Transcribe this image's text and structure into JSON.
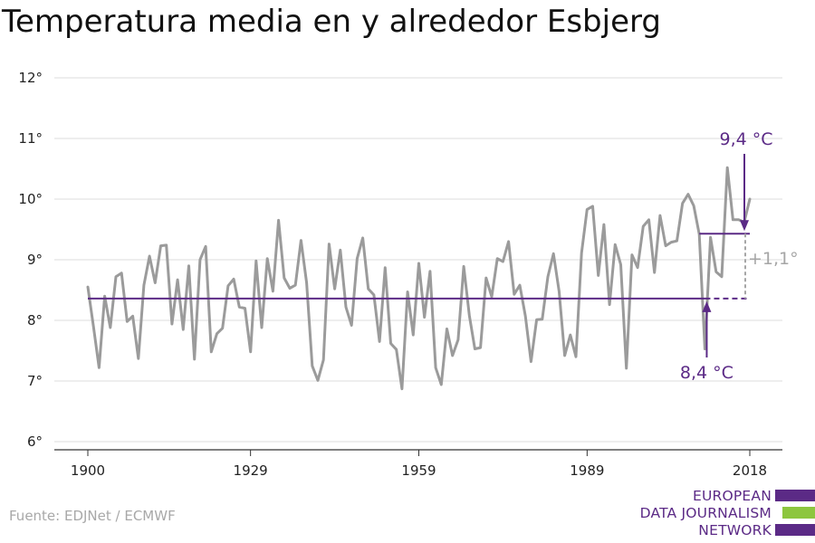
{
  "title": "Temperatura media en y alrededor Esbjerg",
  "source": "Fuente: EDJNet / ECMWF",
  "logo": {
    "lines": [
      "EUROPEAN",
      "DATA JOURNALISM",
      "NETWORK"
    ],
    "bar_colors": [
      "#5b2a86",
      "#8dc63f",
      "#5b2a86"
    ]
  },
  "colors": {
    "series": "#9b9b9b",
    "accent": "#5b2a86",
    "diff": "#a6a6a6",
    "grid": "#dddddd",
    "axis": "#333333"
  },
  "chart_data": {
    "type": "line",
    "xlim": [
      1900,
      2018
    ],
    "ylim": [
      6,
      12
    ],
    "yticks": [
      6,
      7,
      8,
      9,
      10,
      11,
      12
    ],
    "ytick_labels": [
      "6°",
      "7°",
      "8°",
      "9°",
      "10°",
      "11°",
      "12°"
    ],
    "xticks": [
      1900,
      1929,
      1959,
      1989,
      2018
    ],
    "xtick_labels": [
      "1900",
      "1929",
      "1959",
      "1989",
      "2018"
    ],
    "grid": true,
    "series": [
      {
        "x": [
          1900,
          1901,
          1902,
          1903,
          1904,
          1905,
          1906,
          1907,
          1908,
          1909,
          1910,
          1911,
          1912,
          1913,
          1914,
          1915,
          1916,
          1917,
          1918,
          1919,
          1920,
          1921,
          1922,
          1923,
          1924,
          1925,
          1926,
          1927,
          1928,
          1929,
          1930,
          1931,
          1932,
          1933,
          1934,
          1935,
          1936,
          1937,
          1938,
          1939,
          1940,
          1941,
          1942,
          1943,
          1944,
          1945,
          1946,
          1947,
          1948,
          1949,
          1950,
          1951,
          1952,
          1953,
          1954,
          1955,
          1956,
          1957,
          1958,
          1959,
          1960,
          1961,
          1962,
          1963,
          1964,
          1965,
          1966,
          1967,
          1968,
          1969,
          1970,
          1971,
          1972,
          1973,
          1974,
          1975,
          1976,
          1977,
          1978,
          1979,
          1980,
          1981,
          1982,
          1983,
          1984,
          1985,
          1986,
          1987,
          1988,
          1989,
          1990,
          1991,
          1992,
          1993,
          1994,
          1995,
          1996,
          1997,
          1998,
          1999,
          2000,
          2001,
          2002,
          2003,
          2004,
          2005,
          2006,
          2007,
          2008,
          2009,
          2010,
          2011,
          2012,
          2013,
          2014,
          2015,
          2016,
          2017,
          2018
        ],
        "values": [
          8.55,
          7.9,
          7.22,
          8.4,
          7.88,
          8.72,
          8.78,
          7.98,
          8.07,
          7.37,
          8.58,
          9.06,
          8.62,
          9.23,
          9.24,
          7.94,
          8.67,
          7.85,
          8.9,
          7.36,
          9.0,
          9.22,
          7.48,
          7.78,
          7.87,
          8.57,
          8.68,
          8.22,
          8.2,
          7.48,
          8.98,
          7.88,
          9.02,
          8.48,
          9.65,
          8.7,
          8.53,
          8.58,
          9.32,
          8.62,
          7.25,
          7.01,
          7.35,
          9.26,
          8.52,
          9.16,
          8.22,
          7.92,
          9.02,
          9.36,
          8.52,
          8.42,
          7.65,
          8.87,
          7.62,
          7.52,
          6.87,
          8.47,
          7.76,
          8.94,
          8.05,
          8.81,
          7.22,
          6.94,
          7.86,
          7.42,
          7.68,
          8.89,
          8.08,
          7.53,
          7.55,
          8.7,
          8.39,
          9.02,
          8.97,
          9.3,
          8.43,
          8.58,
          8.07,
          7.32,
          8.01,
          8.02,
          8.72,
          9.1,
          8.48,
          7.42,
          7.76,
          7.4,
          9.11,
          9.83,
          9.88,
          8.74,
          9.58,
          8.26,
          9.25,
          8.92,
          7.21,
          9.08,
          8.87,
          9.55,
          9.66,
          8.79,
          9.73,
          9.23,
          9.29,
          9.31,
          9.93,
          10.08,
          9.89,
          9.42,
          7.53,
          9.37,
          8.8,
          8.72,
          10.52,
          9.66,
          9.66,
          9.62,
          10.0
        ]
      }
    ],
    "reference_lines": [
      {
        "label": "8,4 °C",
        "value": 8.36,
        "from": 1900,
        "to": 2018,
        "dashed_from": 2010
      },
      {
        "label": "9,4 °C",
        "value": 9.43,
        "from": 2009,
        "to": 2018
      }
    ],
    "difference_label": "+1,1°"
  }
}
